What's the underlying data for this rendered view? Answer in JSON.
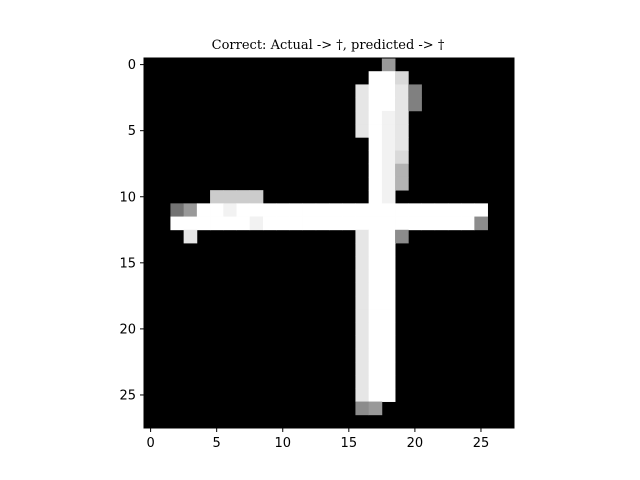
{
  "chart_data": {
    "type": "heatmap",
    "title": "Correct: Actual -> †, predicted -> †",
    "colormap": "gray",
    "grid": false,
    "xlim": [
      -0.5,
      27.5
    ],
    "ylim": [
      27.5,
      -0.5
    ],
    "x_ticks": [
      "0",
      "5",
      "10",
      "15",
      "20",
      "25"
    ],
    "y_ticks": [
      "0",
      "5",
      "10",
      "15",
      "20",
      "25"
    ],
    "shape": [
      28,
      28
    ],
    "bright_pixels": [
      {
        "row": 0,
        "col": 18,
        "v": 0.6
      },
      {
        "row": 1,
        "col": 17,
        "v": 1.0
      },
      {
        "row": 1,
        "col": 18,
        "v": 1.0
      },
      {
        "row": 1,
        "col": 19,
        "v": 0.85
      },
      {
        "row": 2,
        "col": 16,
        "v": 0.9
      },
      {
        "row": 2,
        "col": 17,
        "v": 1.0
      },
      {
        "row": 2,
        "col": 18,
        "v": 1.0
      },
      {
        "row": 2,
        "col": 19,
        "v": 0.9
      },
      {
        "row": 2,
        "col": 20,
        "v": 0.5
      },
      {
        "row": 3,
        "col": 16,
        "v": 0.9
      },
      {
        "row": 3,
        "col": 17,
        "v": 1.0
      },
      {
        "row": 3,
        "col": 18,
        "v": 1.0
      },
      {
        "row": 3,
        "col": 19,
        "v": 0.9
      },
      {
        "row": 3,
        "col": 20,
        "v": 0.5
      },
      {
        "row": 4,
        "col": 16,
        "v": 0.9
      },
      {
        "row": 4,
        "col": 17,
        "v": 1.0
      },
      {
        "row": 4,
        "col": 18,
        "v": 0.95
      },
      {
        "row": 4,
        "col": 19,
        "v": 0.9
      },
      {
        "row": 5,
        "col": 16,
        "v": 0.9
      },
      {
        "row": 5,
        "col": 17,
        "v": 1.0
      },
      {
        "row": 5,
        "col": 18,
        "v": 0.95
      },
      {
        "row": 5,
        "col": 19,
        "v": 0.9
      },
      {
        "row": 6,
        "col": 17,
        "v": 1.0
      },
      {
        "row": 6,
        "col": 18,
        "v": 0.95
      },
      {
        "row": 6,
        "col": 19,
        "v": 0.9
      },
      {
        "row": 7,
        "col": 17,
        "v": 1.0
      },
      {
        "row": 7,
        "col": 18,
        "v": 0.95
      },
      {
        "row": 7,
        "col": 19,
        "v": 0.85
      },
      {
        "row": 8,
        "col": 17,
        "v": 1.0
      },
      {
        "row": 8,
        "col": 18,
        "v": 0.95
      },
      {
        "row": 8,
        "col": 19,
        "v": 0.7
      },
      {
        "row": 9,
        "col": 17,
        "v": 1.0
      },
      {
        "row": 9,
        "col": 18,
        "v": 0.95
      },
      {
        "row": 9,
        "col": 19,
        "v": 0.7
      },
      {
        "row": 10,
        "col": 5,
        "v": 0.8
      },
      {
        "row": 10,
        "col": 6,
        "v": 0.8
      },
      {
        "row": 10,
        "col": 7,
        "v": 0.8
      },
      {
        "row": 10,
        "col": 8,
        "v": 0.8
      },
      {
        "row": 10,
        "col": 17,
        "v": 1.0
      },
      {
        "row": 10,
        "col": 18,
        "v": 0.95
      },
      {
        "row": 11,
        "col": 2,
        "v": 0.45
      },
      {
        "row": 11,
        "col": 3,
        "v": 0.6
      },
      {
        "row": 11,
        "col": 4,
        "v": 1.0
      },
      {
        "row": 11,
        "col": 5,
        "v": 1.0
      },
      {
        "row": 11,
        "col": 6,
        "v": 0.95
      },
      {
        "row": 11,
        "col": 7,
        "v": 1.0
      },
      {
        "row": 11,
        "col": 8,
        "v": 1.0
      },
      {
        "row": 11,
        "col": 9,
        "v": 1.0
      },
      {
        "row": 11,
        "col": 10,
        "v": 1.0
      },
      {
        "row": 11,
        "col": 11,
        "v": 1.0
      },
      {
        "row": 11,
        "col": 12,
        "v": 1.0
      },
      {
        "row": 11,
        "col": 13,
        "v": 1.0
      },
      {
        "row": 11,
        "col": 14,
        "v": 1.0
      },
      {
        "row": 11,
        "col": 15,
        "v": 1.0
      },
      {
        "row": 11,
        "col": 16,
        "v": 1.0
      },
      {
        "row": 11,
        "col": 17,
        "v": 1.0
      },
      {
        "row": 11,
        "col": 18,
        "v": 1.0
      },
      {
        "row": 11,
        "col": 19,
        "v": 1.0
      },
      {
        "row": 11,
        "col": 20,
        "v": 1.0
      },
      {
        "row": 11,
        "col": 21,
        "v": 1.0
      },
      {
        "row": 11,
        "col": 22,
        "v": 1.0
      },
      {
        "row": 11,
        "col": 23,
        "v": 1.0
      },
      {
        "row": 11,
        "col": 24,
        "v": 1.0
      },
      {
        "row": 11,
        "col": 25,
        "v": 1.0
      },
      {
        "row": 12,
        "col": 2,
        "v": 1.0
      },
      {
        "row": 12,
        "col": 3,
        "v": 1.0
      },
      {
        "row": 12,
        "col": 4,
        "v": 1.0
      },
      {
        "row": 12,
        "col": 5,
        "v": 1.0
      },
      {
        "row": 12,
        "col": 6,
        "v": 1.0
      },
      {
        "row": 12,
        "col": 7,
        "v": 1.0
      },
      {
        "row": 12,
        "col": 8,
        "v": 0.95
      },
      {
        "row": 12,
        "col": 9,
        "v": 1.0
      },
      {
        "row": 12,
        "col": 10,
        "v": 1.0
      },
      {
        "row": 12,
        "col": 11,
        "v": 1.0
      },
      {
        "row": 12,
        "col": 12,
        "v": 1.0
      },
      {
        "row": 12,
        "col": 13,
        "v": 1.0
      },
      {
        "row": 12,
        "col": 14,
        "v": 1.0
      },
      {
        "row": 12,
        "col": 15,
        "v": 1.0
      },
      {
        "row": 12,
        "col": 16,
        "v": 1.0
      },
      {
        "row": 12,
        "col": 17,
        "v": 1.0
      },
      {
        "row": 12,
        "col": 18,
        "v": 1.0
      },
      {
        "row": 12,
        "col": 19,
        "v": 1.0
      },
      {
        "row": 12,
        "col": 20,
        "v": 1.0
      },
      {
        "row": 12,
        "col": 21,
        "v": 1.0
      },
      {
        "row": 12,
        "col": 22,
        "v": 1.0
      },
      {
        "row": 12,
        "col": 23,
        "v": 1.0
      },
      {
        "row": 12,
        "col": 24,
        "v": 1.0
      },
      {
        "row": 12,
        "col": 25,
        "v": 0.55
      },
      {
        "row": 13,
        "col": 3,
        "v": 0.9
      },
      {
        "row": 13,
        "col": 16,
        "v": 0.9
      },
      {
        "row": 13,
        "col": 17,
        "v": 1.0
      },
      {
        "row": 13,
        "col": 18,
        "v": 1.0
      },
      {
        "row": 13,
        "col": 19,
        "v": 0.55
      },
      {
        "row": 14,
        "col": 16,
        "v": 0.9
      },
      {
        "row": 14,
        "col": 17,
        "v": 1.0
      },
      {
        "row": 14,
        "col": 18,
        "v": 1.0
      },
      {
        "row": 15,
        "col": 16,
        "v": 0.9
      },
      {
        "row": 15,
        "col": 17,
        "v": 1.0
      },
      {
        "row": 15,
        "col": 18,
        "v": 1.0
      },
      {
        "row": 16,
        "col": 16,
        "v": 0.9
      },
      {
        "row": 16,
        "col": 17,
        "v": 1.0
      },
      {
        "row": 16,
        "col": 18,
        "v": 1.0
      },
      {
        "row": 17,
        "col": 16,
        "v": 0.9
      },
      {
        "row": 17,
        "col": 17,
        "v": 1.0
      },
      {
        "row": 17,
        "col": 18,
        "v": 1.0
      },
      {
        "row": 18,
        "col": 16,
        "v": 0.9
      },
      {
        "row": 18,
        "col": 17,
        "v": 1.0
      },
      {
        "row": 18,
        "col": 18,
        "v": 1.0
      },
      {
        "row": 19,
        "col": 16,
        "v": 0.9
      },
      {
        "row": 19,
        "col": 17,
        "v": 1.0
      },
      {
        "row": 19,
        "col": 18,
        "v": 1.0
      },
      {
        "row": 20,
        "col": 16,
        "v": 0.9
      },
      {
        "row": 20,
        "col": 17,
        "v": 1.0
      },
      {
        "row": 20,
        "col": 18,
        "v": 1.0
      },
      {
        "row": 21,
        "col": 16,
        "v": 0.9
      },
      {
        "row": 21,
        "col": 17,
        "v": 1.0
      },
      {
        "row": 21,
        "col": 18,
        "v": 1.0
      },
      {
        "row": 22,
        "col": 16,
        "v": 0.9
      },
      {
        "row": 22,
        "col": 17,
        "v": 1.0
      },
      {
        "row": 22,
        "col": 18,
        "v": 1.0
      },
      {
        "row": 23,
        "col": 16,
        "v": 0.9
      },
      {
        "row": 23,
        "col": 17,
        "v": 1.0
      },
      {
        "row": 23,
        "col": 18,
        "v": 1.0
      },
      {
        "row": 24,
        "col": 16,
        "v": 0.9
      },
      {
        "row": 24,
        "col": 17,
        "v": 1.0
      },
      {
        "row": 24,
        "col": 18,
        "v": 1.0
      },
      {
        "row": 25,
        "col": 16,
        "v": 0.9
      },
      {
        "row": 25,
        "col": 17,
        "v": 1.0
      },
      {
        "row": 25,
        "col": 18,
        "v": 1.0
      },
      {
        "row": 26,
        "col": 16,
        "v": 0.55
      },
      {
        "row": 26,
        "col": 17,
        "v": 0.6
      }
    ]
  }
}
